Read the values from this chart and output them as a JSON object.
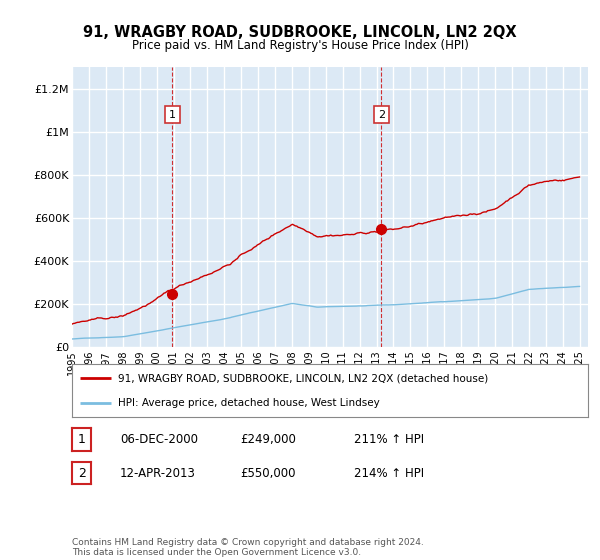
{
  "title": "91, WRAGBY ROAD, SUDBROOKE, LINCOLN, LN2 2QX",
  "subtitle": "Price paid vs. HM Land Registry's House Price Index (HPI)",
  "ylabel_ticks": [
    "£0",
    "£200K",
    "£400K",
    "£600K",
    "£800K",
    "£1M",
    "£1.2M"
  ],
  "ytick_values": [
    0,
    200000,
    400000,
    600000,
    800000,
    1000000,
    1200000
  ],
  "ylim": [
    0,
    1300000
  ],
  "xlim_start": 1995,
  "xlim_end": 2025.5,
  "background_color": "#ffffff",
  "plot_bg_color": "#dce9f5",
  "grid_color": "#ffffff",
  "hpi_line_color": "#7bbde0",
  "price_line_color": "#cc0000",
  "marker1_x": 2000.92,
  "marker1_y": 249000,
  "marker2_x": 2013.28,
  "marker2_y": 550000,
  "marker1_label": "1",
  "marker2_label": "2",
  "marker1_date": "06-DEC-2000",
  "marker1_price": "£249,000",
  "marker1_hpi": "211% ↑ HPI",
  "marker2_date": "12-APR-2013",
  "marker2_price": "£550,000",
  "marker2_hpi": "214% ↑ HPI",
  "legend_line1": "91, WRAGBY ROAD, SUDBROOKE, LINCOLN, LN2 2QX (detached house)",
  "legend_line2": "HPI: Average price, detached house, West Lindsey",
  "footnote": "Contains HM Land Registry data © Crown copyright and database right 2024.\nThis data is licensed under the Open Government Licence v3.0.",
  "xtick_labels": [
    "1995",
    "1996",
    "1997",
    "1998",
    "1999",
    "2000",
    "2001",
    "2002",
    "2003",
    "2004",
    "2005",
    "2006",
    "2007",
    "2008",
    "2009",
    "2010",
    "2011",
    "2012",
    "2013",
    "2014",
    "2015",
    "2016",
    "2017",
    "2018",
    "2019",
    "2020",
    "2021",
    "2022",
    "2023",
    "2024",
    "2025"
  ],
  "xtick_values": [
    1995,
    1996,
    1997,
    1998,
    1999,
    2000,
    2001,
    2002,
    2003,
    2004,
    2005,
    2006,
    2007,
    2008,
    2009,
    2010,
    2011,
    2012,
    2013,
    2014,
    2015,
    2016,
    2017,
    2018,
    2019,
    2020,
    2021,
    2022,
    2023,
    2024,
    2025
  ]
}
